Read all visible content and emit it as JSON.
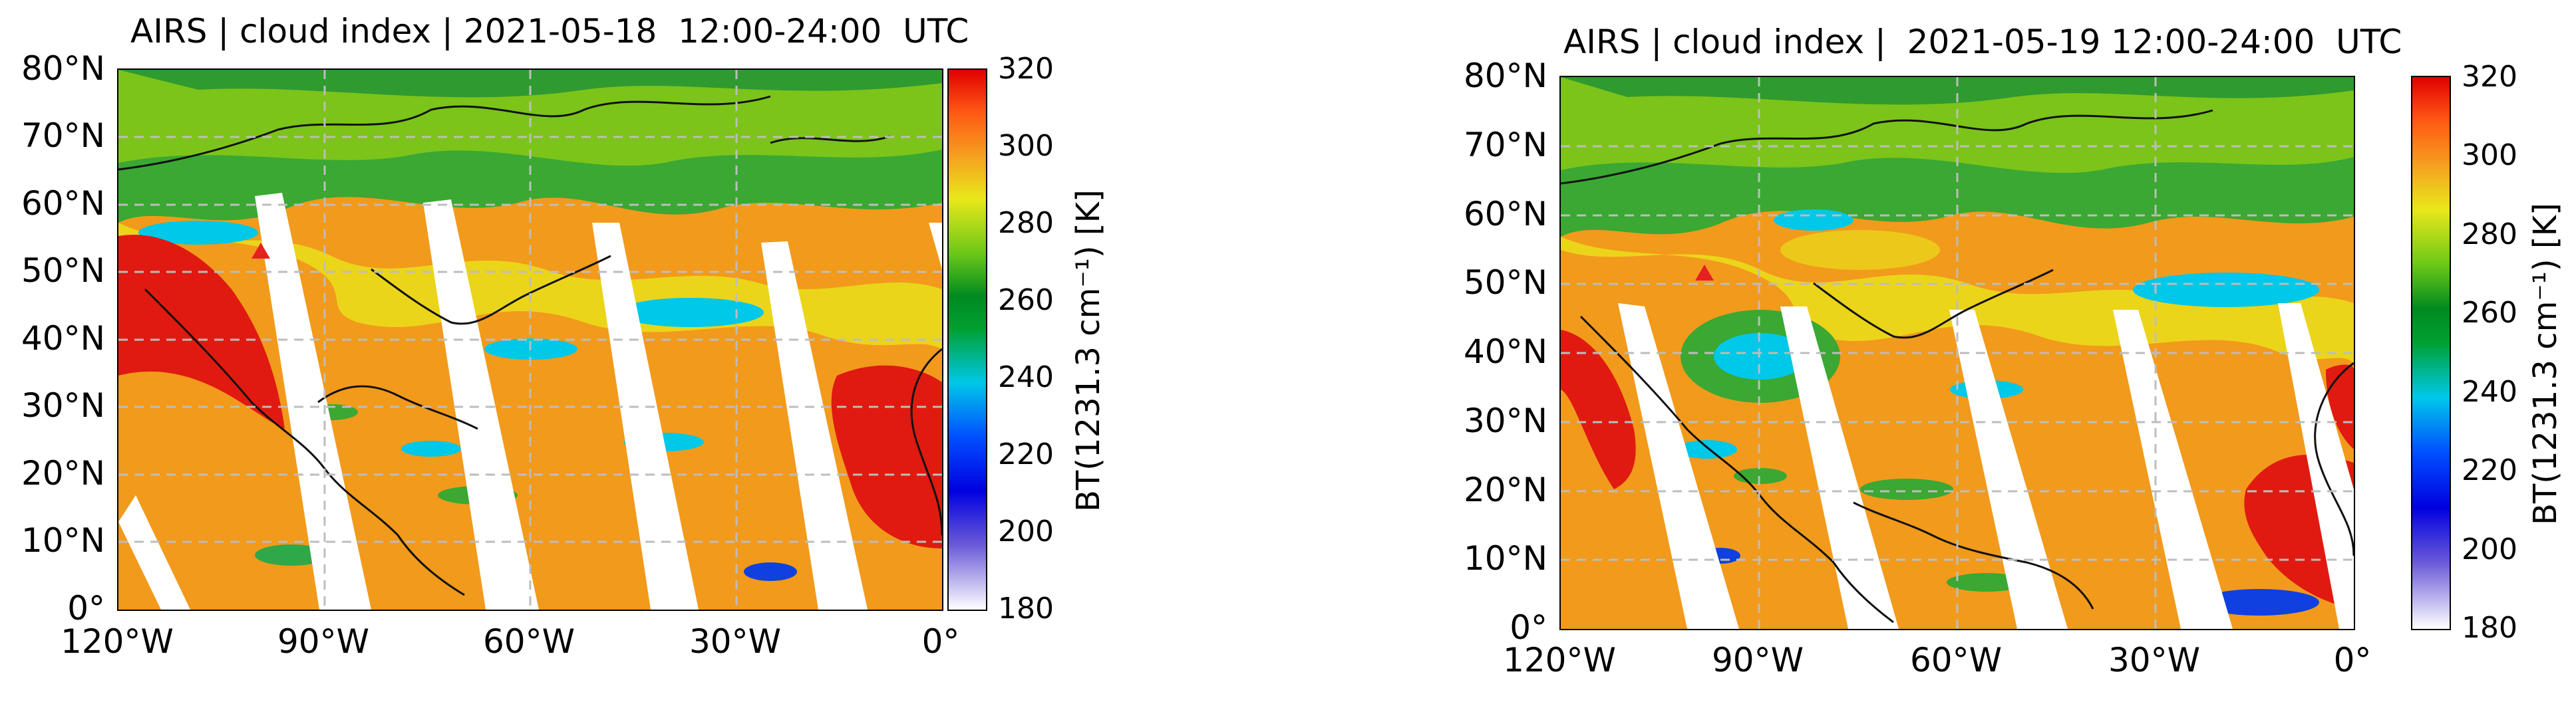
{
  "panels": [
    {
      "title": "AIRS | cloud index | 2021-05-18  12:00-24:00  UTC",
      "lat_ticks": [
        "80°N",
        "70°N",
        "60°N",
        "50°N",
        "40°N",
        "30°N",
        "20°N",
        "10°N",
        "0°"
      ],
      "lon_ticks": [
        "120°W",
        "90°W",
        "60°W",
        "30°W",
        "0°"
      ],
      "colorbar": {
        "ticks": [
          "320",
          "300",
          "280",
          "260",
          "240",
          "220",
          "200",
          "180"
        ],
        "range": [
          180,
          320
        ],
        "label": "BT(1231.3 cm⁻¹) [K]"
      }
    },
    {
      "title": "AIRS | cloud index |  2021-05-19 12:00-24:00  UTC",
      "lat_ticks": [
        "80°N",
        "70°N",
        "60°N",
        "50°N",
        "40°N",
        "30°N",
        "20°N",
        "10°N",
        "0°"
      ],
      "lon_ticks": [
        "120°W",
        "90°W",
        "60°W",
        "30°W",
        "0°"
      ],
      "colorbar": {
        "ticks": [
          "320",
          "300",
          "280",
          "260",
          "240",
          "220",
          "200",
          "180"
        ],
        "range": [
          180,
          320
        ],
        "label": "BT(1231.3 cm⁻¹) [K]"
      }
    }
  ],
  "colors": {
    "warm": "#f29a1c",
    "hot": "#e01a10",
    "cold": "#00c8e8",
    "cloud_green": "#3aa832",
    "colorbar_max": "#e00000",
    "colorbar_min": "#ffffff"
  }
}
